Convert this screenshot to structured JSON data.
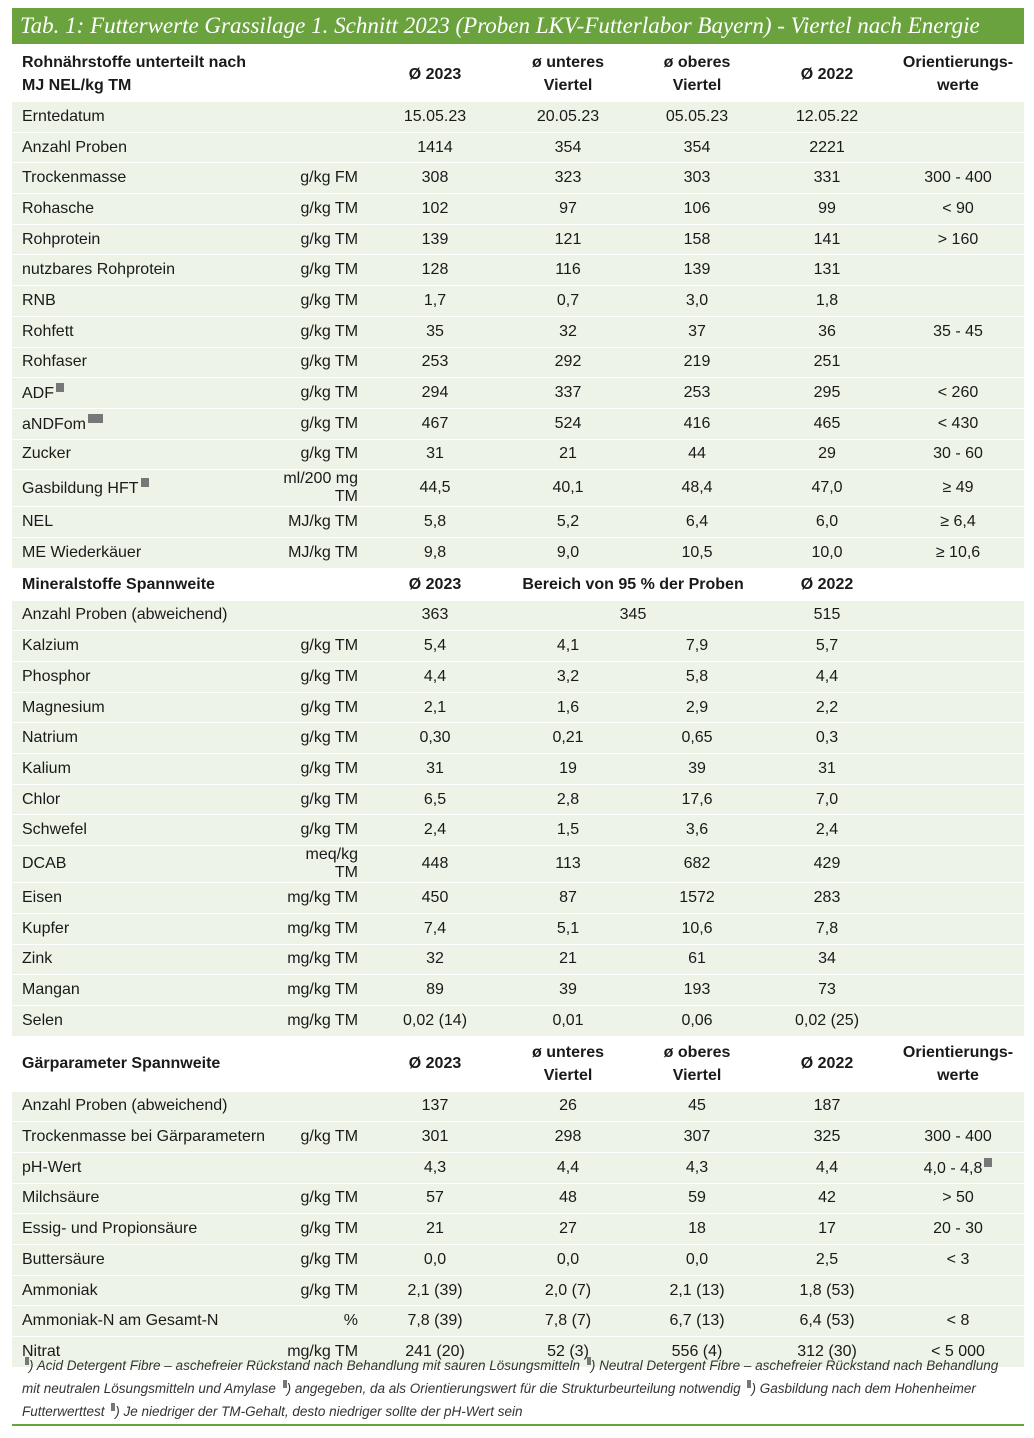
{
  "title": "Tab. 1: Futterwerte Grassilage 1. Schnitt 2023 (Proben LKV-Futterlabor Bayern) - Viertel nach Energie",
  "sections": [
    {
      "header": [
        "Rohnährstoffe unterteilt nach\nMJ NEL/kg TM",
        "Ø 2023",
        "ø unteres\nViertel",
        "ø oberes\nViertel",
        "Ø 2022",
        "Orientierungs-\nwerte"
      ],
      "rows": [
        {
          "label": "Erntedatum",
          "values": [
            "15.05.23",
            "20.05.23",
            "05.05.23",
            "12.05.22"
          ]
        },
        {
          "label": "Anzahl Proben",
          "values": [
            "1414",
            "354",
            "354",
            "2221"
          ]
        },
        {
          "label": "Trockenmasse",
          "unit": "g/kg FM",
          "values": [
            "308",
            "323",
            "303",
            "331",
            "300 - 400"
          ]
        },
        {
          "label": "Rohasche",
          "unit": "g/kg TM",
          "values": [
            "102",
            "97",
            "106",
            "99",
            "< 90"
          ]
        },
        {
          "label": "Rohprotein",
          "unit": "g/kg TM",
          "values": [
            "139",
            "121",
            "158",
            "141",
            "> 160"
          ]
        },
        {
          "label": "nutzbares Rohprotein",
          "unit": "g/kg TM",
          "values": [
            "128",
            "116",
            "139",
            "131"
          ]
        },
        {
          "label": "RNB",
          "unit": "g/kg TM",
          "values": [
            "1,7",
            "0,7",
            "3,0",
            "1,8"
          ]
        },
        {
          "label": "Rohfett",
          "unit": "g/kg TM",
          "values": [
            "35",
            "32",
            "37",
            "36",
            "35 - 45"
          ]
        },
        {
          "label": "Rohfaser",
          "unit": "g/kg TM",
          "values": [
            "253",
            "292",
            "219",
            "251"
          ]
        },
        {
          "label": "ADF",
          "unit": "g/kg TM",
          "values": [
            "294",
            "337",
            "253",
            "295",
            "< 260"
          ]
        },
        {
          "label": "aNDFom",
          "unit": "g/kg TM",
          "values": [
            "467",
            "524",
            "416",
            "465",
            "< 430"
          ]
        },
        {
          "label": "Zucker",
          "unit": "g/kg TM",
          "values": [
            "31",
            "21",
            "44",
            "29",
            "30 - 60"
          ]
        },
        {
          "label": "Gasbildung HFT",
          "unit": "ml/200 mg TM",
          "values": [
            "44,5",
            "40,1",
            "48,4",
            "47,0",
            "≥ 49"
          ]
        },
        {
          "label": "NEL",
          "unit": "MJ/kg TM",
          "values": [
            "5,8",
            "5,2",
            "6,4",
            "6,0",
            "≥ 6,4"
          ]
        },
        {
          "label": "ME Wiederkäuer",
          "unit": "MJ/kg TM",
          "values": [
            "9,8",
            "9,0",
            "10,5",
            "10,0",
            "≥ 10,6"
          ]
        }
      ]
    },
    {
      "header": [
        "Mineralstoffe  Spannweite",
        "Ø 2023",
        "Bereich von 95 % der Proben",
        "Ø 2022"
      ],
      "rows": [
        {
          "label": "Anzahl Proben (abweichend)",
          "values": [
            "363",
            "345",
            "515"
          ]
        },
        {
          "label": "Kalzium",
          "unit": "g/kg TM",
          "values": [
            "5,4",
            "4,1",
            "7,9",
            "5,7"
          ]
        },
        {
          "label": "Phosphor",
          "unit": "g/kg TM",
          "values": [
            "4,4",
            "3,2",
            "5,8",
            "4,4"
          ]
        },
        {
          "label": "Magnesium",
          "unit": "g/kg TM",
          "values": [
            "2,1",
            "1,6",
            "2,9",
            "2,2"
          ]
        },
        {
          "label": "Natrium",
          "unit": "g/kg TM",
          "values": [
            "0,30",
            "0,21",
            "0,65",
            "0,3"
          ]
        },
        {
          "label": "Kalium",
          "unit": "g/kg TM",
          "values": [
            "31",
            "19",
            "39",
            "31"
          ]
        },
        {
          "label": "Chlor",
          "unit": "g/kg TM",
          "values": [
            "6,5",
            "2,8",
            "17,6",
            "7,0"
          ]
        },
        {
          "label": "Schwefel",
          "unit": "g/kg TM",
          "values": [
            "2,4",
            "1,5",
            "3,6",
            "2,4"
          ]
        },
        {
          "label": "DCAB",
          "unit": "meq/kg TM",
          "values": [
            "448",
            "113",
            "682",
            "429"
          ]
        },
        {
          "label": "Eisen",
          "unit": "mg/kg TM",
          "values": [
            "450",
            "87",
            "1572",
            "283"
          ]
        },
        {
          "label": "Kupfer",
          "unit": "mg/kg TM",
          "values": [
            "7,4",
            "5,1",
            "10,6",
            "7,8"
          ]
        },
        {
          "label": "Zink",
          "unit": "mg/kg TM",
          "values": [
            "32",
            "21",
            "61",
            "34"
          ]
        },
        {
          "label": "Mangan",
          "unit": "mg/kg TM",
          "values": [
            "89",
            "39",
            "193",
            "73"
          ]
        },
        {
          "label": "Selen",
          "unit": "mg/kg TM",
          "values": [
            "0,02 (14)",
            "0,01",
            "0,06",
            "0,02 (25)"
          ]
        }
      ]
    },
    {
      "header": [
        "Gärparameter Spannweite",
        "Ø 2023",
        "ø unteres\nViertel",
        "ø oberes\nViertel",
        "Ø 2022",
        "Orientierungs-\nwerte"
      ],
      "rows": [
        {
          "label": "Anzahl Proben (abweichend)",
          "values": [
            "137",
            "26",
            "45",
            "187"
          ]
        },
        {
          "label": "Trockenmasse bei Gärparametern",
          "unit": "g/kg TM",
          "values": [
            "301",
            "298",
            "307",
            "325",
            "300 - 400"
          ]
        },
        {
          "label": "pH-Wert",
          "values": [
            "4,3",
            "4,4",
            "4,3",
            "4,4",
            "4,0 - 4,8"
          ]
        },
        {
          "label": "Milchsäure",
          "unit": "g/kg TM",
          "values": [
            "57",
            "48",
            "59",
            "42",
            "> 50"
          ]
        },
        {
          "label": "Essig- und Propionsäure",
          "unit": "g/kg TM",
          "values": [
            "21",
            "27",
            "18",
            "17",
            "20 - 30"
          ]
        },
        {
          "label": "Buttersäure",
          "unit": "g/kg TM",
          "values": [
            "0,0",
            "0,0",
            "0,0",
            "2,5",
            "< 3"
          ]
        },
        {
          "label": "Ammoniak",
          "unit": "g/kg TM",
          "values": [
            "2,1 (39)",
            "2,0 (7)",
            "2,1 (13)",
            "1,8 (53)"
          ]
        },
        {
          "label": "Ammoniak-N am Gesamt-N",
          "unit": "%",
          "values": [
            "7,8 (39)",
            "7,8 (7)",
            "6,7 (13)",
            "6,4 (53)",
            "< 8"
          ]
        },
        {
          "label": "Nitrat",
          "unit": "mg/kg TM",
          "values": [
            "241 (20)",
            "52 (3)",
            "556 (4)",
            "312 (30)",
            "< 5 000"
          ]
        }
      ]
    }
  ],
  "footnotes": [
    ") Acid Detergent Fibre – aschefreier Rückstand nach Behandlung mit sauren Lösungsmitteln",
    ") Neutral Detergent Fibre – aschefreier Rückstand nach Behandlung mit neutralen Lösungsmitteln und Amylase",
    ") angegeben, da als Orientierungswert für die Strukturbeurteilung notwendig",
    ") Gasbildung nach dem Hohenheimer Futterwerttest",
    ") Je niedriger der TM-Gehalt, desto niedriger sollte der pH-Wert sein"
  ]
}
